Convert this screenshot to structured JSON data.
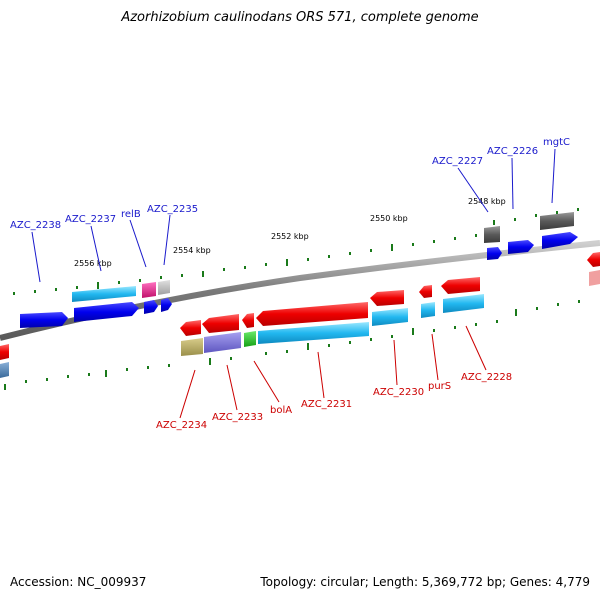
{
  "title": "Azorhizobium caulinodans ORS 571, complete genome",
  "accession": "Accession: NC_009937",
  "stats": "Topology: circular; Length: 5,369,772 bp; Genes: 4,779",
  "colors": {
    "backbone": "#8a8a8a",
    "tick": "#1a7a1a",
    "label_top": "#1a1acc",
    "label_bottom": "#cc0000"
  },
  "scale_labels": [
    "2556 kbp",
    "2554 kbp",
    "2552 kbp",
    "2550 kbp",
    "2548 kbp"
  ],
  "top_genes": [
    "AZC_2238",
    "AZC_2237",
    "relB",
    "AZC_2235",
    "AZC_2227",
    "AZC_2226",
    "mgtC"
  ],
  "bottom_genes": [
    "AZC_2234",
    "AZC_2233",
    "bolA",
    "AZC_2231",
    "AZC_2230",
    "purS",
    "AZC_2228"
  ]
}
